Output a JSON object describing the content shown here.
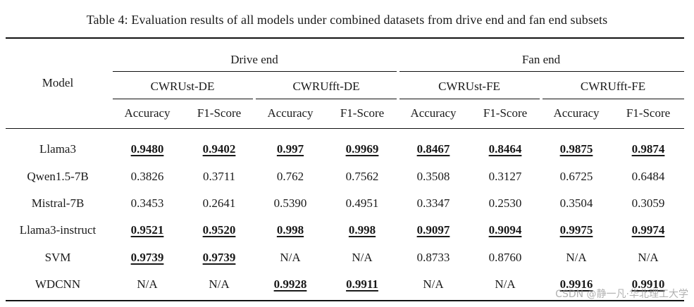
{
  "caption": "Table 4: Evaluation results of all models under combined datasets from drive end and fan end subsets",
  "header": {
    "model_label": "Model",
    "groups": [
      "Drive end",
      "Fan end"
    ],
    "datasets": [
      "CWRUst-DE",
      "CWRUfft-DE",
      "CWRUst-FE",
      "CWRUfft-FE"
    ],
    "metrics": [
      "Accuracy",
      "F1-Score",
      "Accuracy",
      "F1-Score",
      "Accuracy",
      "F1-Score",
      "Accuracy",
      "F1-Score"
    ]
  },
  "rows": [
    {
      "model": "Llama3",
      "values": [
        "0.9480",
        "0.9402",
        "0.997",
        "0.9969",
        "0.8467",
        "0.8464",
        "0.9875",
        "0.9874"
      ],
      "bold": [
        true,
        true,
        true,
        true,
        true,
        true,
        true,
        true
      ]
    },
    {
      "model": "Qwen1.5-7B",
      "values": [
        "0.3826",
        "0.3711",
        "0.762",
        "0.7562",
        "0.3508",
        "0.3127",
        "0.6725",
        "0.6484"
      ],
      "bold": [
        false,
        false,
        false,
        false,
        false,
        false,
        false,
        false
      ]
    },
    {
      "model": "Mistral-7B",
      "values": [
        "0.3453",
        "0.2641",
        "0.5390",
        "0.4951",
        "0.3347",
        "0.2530",
        "0.3504",
        "0.3059"
      ],
      "bold": [
        false,
        false,
        false,
        false,
        false,
        false,
        false,
        false
      ]
    },
    {
      "model": "Llama3-instruct",
      "values": [
        "0.9521",
        "0.9520",
        "0.998",
        "0.998",
        "0.9097",
        "0.9094",
        "0.9975",
        "0.9974"
      ],
      "bold": [
        true,
        true,
        true,
        true,
        true,
        true,
        true,
        true
      ]
    },
    {
      "model": "SVM",
      "values": [
        "0.9739",
        "0.9739",
        "N/A",
        "N/A",
        "0.8733",
        "0.8760",
        "N/A",
        "N/A"
      ],
      "bold": [
        true,
        true,
        false,
        false,
        false,
        false,
        false,
        false
      ]
    },
    {
      "model": "WDCNN",
      "values": [
        "N/A",
        "N/A",
        "0.9928",
        "0.9911",
        "N/A",
        "N/A",
        "0.9916",
        "0.9910"
      ],
      "bold": [
        false,
        false,
        true,
        true,
        false,
        false,
        true,
        true
      ]
    }
  ],
  "watermark": "CSDN @静一凡·华北理工大学"
}
